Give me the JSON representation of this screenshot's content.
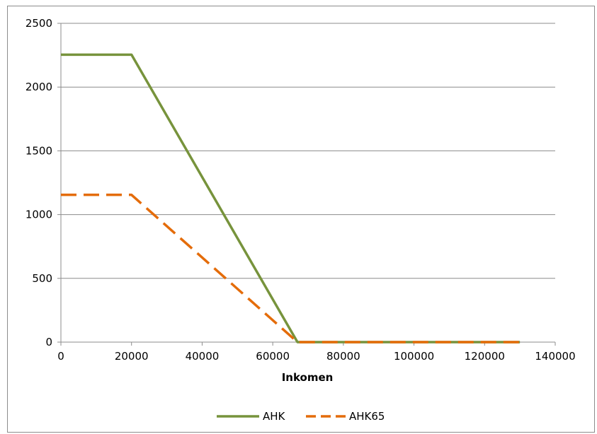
{
  "chart_data": {
    "type": "line",
    "title": "",
    "xlabel": "Inkomen",
    "ylabel": "",
    "xlim": [
      0,
      140000
    ],
    "ylim": [
      0,
      2500
    ],
    "x_ticks": [
      "0",
      "20000",
      "40000",
      "60000",
      "80000",
      "100000",
      "120000",
      "140000"
    ],
    "y_ticks": [
      "0",
      "500",
      "1000",
      "1500",
      "2000",
      "2500"
    ],
    "grid": "horizontal",
    "legend_position": "bottom",
    "series": [
      {
        "name": "AHK",
        "color": "#77933c",
        "style": "solid",
        "points": [
          [
            0,
            2254
          ],
          [
            20000,
            2254
          ],
          [
            67000,
            0
          ],
          [
            130000,
            0
          ]
        ]
      },
      {
        "name": "AHK65",
        "color": "#e46c0a",
        "style": "dashed",
        "points": [
          [
            0,
            1155
          ],
          [
            20000,
            1155
          ],
          [
            67000,
            0
          ],
          [
            130000,
            0
          ]
        ]
      }
    ]
  }
}
